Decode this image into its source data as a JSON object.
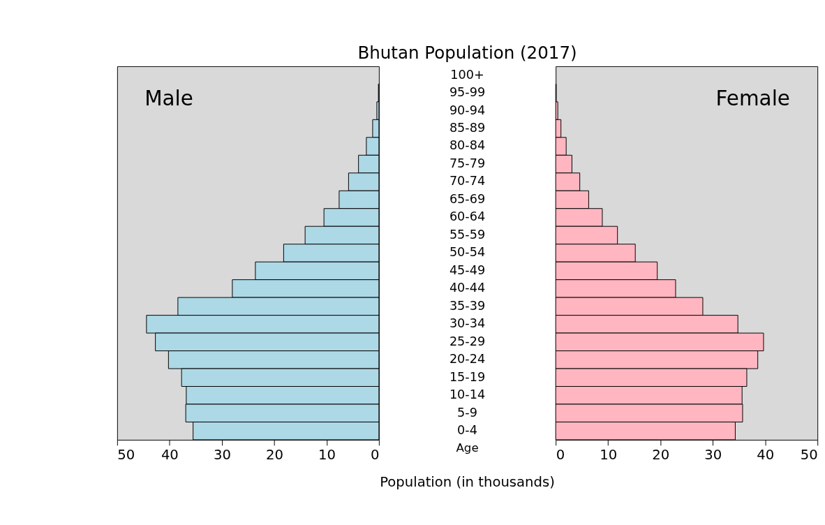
{
  "chart_data": [
    {
      "type": "bar",
      "orientation": "horizontal",
      "title": "Bhutan Population (2017)",
      "ylabel": "Age",
      "categories": [
        "100+",
        "95-99",
        "90-94",
        "85-89",
        "80-84",
        "75-79",
        "70-74",
        "65-69",
        "60-64",
        "55-59",
        "50-54",
        "45-49",
        "40-44",
        "35-39",
        "30-34",
        "25-29",
        "20-24",
        "15-19",
        "10-14",
        "5-9",
        "0-4"
      ],
      "series": [
        {
          "name": "Male",
          "color": "#add8e6",
          "values": [
            0,
            0.1,
            0.4,
            1.2,
            2.4,
            3.9,
            5.8,
            7.6,
            10.5,
            14.1,
            18.2,
            23.6,
            28.0,
            38.4,
            44.4,
            42.7,
            40.2,
            37.7,
            36.8,
            36.9,
            35.5
          ]
        }
      ],
      "xlim": [
        50,
        0
      ],
      "xticks": [
        50,
        40,
        30,
        20,
        10,
        0
      ],
      "grid": false
    },
    {
      "type": "bar",
      "orientation": "horizontal",
      "xlabel": "Population (in thousands)",
      "series": [
        {
          "name": "Female",
          "color": "#ffb6c1",
          "values": [
            0,
            0.1,
            0.4,
            1.0,
            2.0,
            3.1,
            4.6,
            6.3,
            8.9,
            11.8,
            15.2,
            19.4,
            22.9,
            28.1,
            34.8,
            39.7,
            38.6,
            36.5,
            35.6,
            35.7,
            34.3
          ]
        }
      ],
      "xlim": [
        0,
        50
      ],
      "xticks": [
        0,
        10,
        20,
        30,
        40,
        50
      ],
      "tick_labels": "x",
      "grid": false
    }
  ]
}
